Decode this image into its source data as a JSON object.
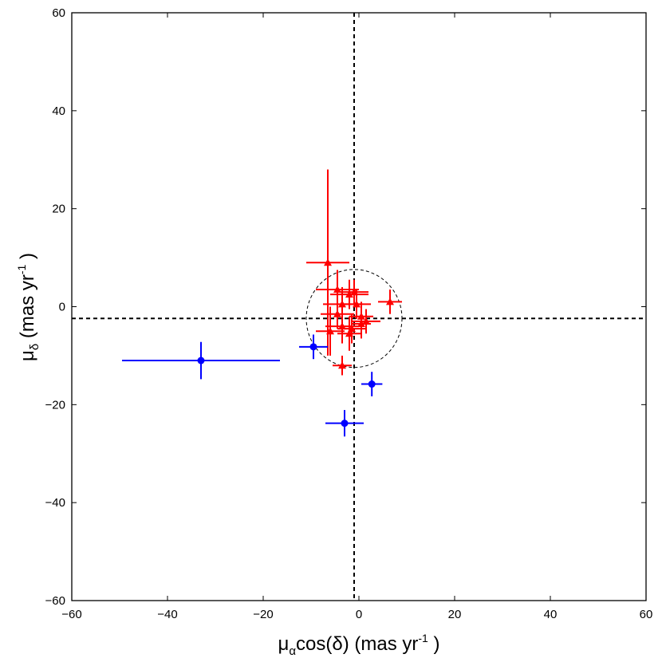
{
  "chart_data": {
    "type": "scatter",
    "title": "",
    "xlabel": {
      "base": "μ",
      "sub": "α",
      "mid": "cos(δ) (mas yr",
      "sup": "-1",
      "end": " )"
    },
    "ylabel": {
      "base": "μ",
      "sub": "δ",
      "mid": " (mas yr",
      "sup": "-1",
      "end": " )"
    },
    "xlim": [
      -60,
      60
    ],
    "ylim": [
      -60,
      60
    ],
    "xticks": [
      -60,
      -40,
      -20,
      0,
      20,
      40,
      60
    ],
    "yticks": [
      -60,
      -40,
      -20,
      0,
      20,
      40,
      60
    ],
    "grid": false,
    "reference_lines": {
      "x": -1.0,
      "y": -2.4,
      "style": "dashed",
      "color": "#000000"
    },
    "reference_circle": {
      "cx": -1.0,
      "cy": -2.4,
      "r": 10.0,
      "style": "dashed",
      "color": "#000000"
    },
    "series": [
      {
        "name": "triangles",
        "marker": "triangle",
        "color": "#ff0000",
        "points": [
          {
            "x": -6.5,
            "y": 9.0,
            "xerr": 4.5,
            "yerr": 19.0
          },
          {
            "x": -4.5,
            "y": 3.5,
            "xerr": 4.5,
            "yerr": 4.0
          },
          {
            "x": -2.0,
            "y": 2.5,
            "xerr": 4.0,
            "yerr": 3.0
          },
          {
            "x": -1.0,
            "y": 3.0,
            "xerr": 3.0,
            "yerr": 2.5
          },
          {
            "x": -3.5,
            "y": 0.5,
            "xerr": 4.0,
            "yerr": 3.5
          },
          {
            "x": -0.5,
            "y": 0.5,
            "xerr": 3.0,
            "yerr": 3.0
          },
          {
            "x": 6.5,
            "y": 1.0,
            "xerr": 2.5,
            "yerr": 2.5
          },
          {
            "x": -4.5,
            "y": -1.5,
            "xerr": 3.5,
            "yerr": 3.0
          },
          {
            "x": 0.5,
            "y": -2.0,
            "xerr": 2.5,
            "yerr": 3.0
          },
          {
            "x": 1.5,
            "y": -3.0,
            "xerr": 3.0,
            "yerr": 2.5
          },
          {
            "x": -3.5,
            "y": -4.0,
            "xerr": 3.5,
            "yerr": 3.5
          },
          {
            "x": -1.5,
            "y": -4.5,
            "xerr": 3.0,
            "yerr": 3.0
          },
          {
            "x": 0.5,
            "y": -3.5,
            "xerr": 2.0,
            "yerr": 3.0
          },
          {
            "x": -6.0,
            "y": -5.0,
            "xerr": 3.0,
            "yerr": 5.0
          },
          {
            "x": -2.0,
            "y": -5.5,
            "xerr": 2.5,
            "yerr": 3.5
          },
          {
            "x": -3.5,
            "y": -12.0,
            "xerr": 2.0,
            "yerr": 2.0
          }
        ]
      },
      {
        "name": "circles",
        "marker": "circle",
        "color": "#0000ff",
        "points": [
          {
            "x": -33.0,
            "y": -11.0,
            "xerr": 16.5,
            "yerr": 3.8
          },
          {
            "x": -9.5,
            "y": -8.2,
            "xerr": 3.0,
            "yerr": 2.5
          },
          {
            "x": 2.7,
            "y": -15.8,
            "xerr": 2.2,
            "yerr": 2.5
          },
          {
            "x": -3.0,
            "y": -23.8,
            "xerr": 4.0,
            "yerr": 2.7
          }
        ]
      }
    ]
  }
}
